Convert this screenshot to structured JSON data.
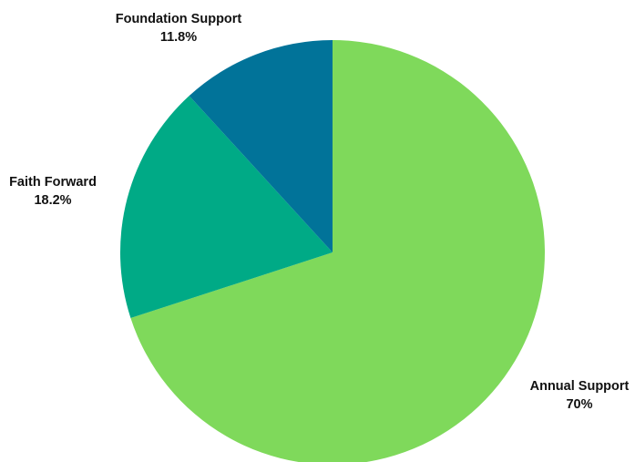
{
  "chart_data": {
    "type": "pie",
    "title": "",
    "slices": [
      {
        "label": "Annual Support",
        "value": 70,
        "display": "70%",
        "color": "#7FD95B"
      },
      {
        "label": "Faith Forward",
        "value": 18.2,
        "display": "18.2%",
        "color": "#00AA86"
      },
      {
        "label": "Foundation Support",
        "value": 11.8,
        "display": "11.8%",
        "color": "#017399"
      }
    ],
    "start": "12 o'clock",
    "direction": "clockwise",
    "legend": "none"
  }
}
